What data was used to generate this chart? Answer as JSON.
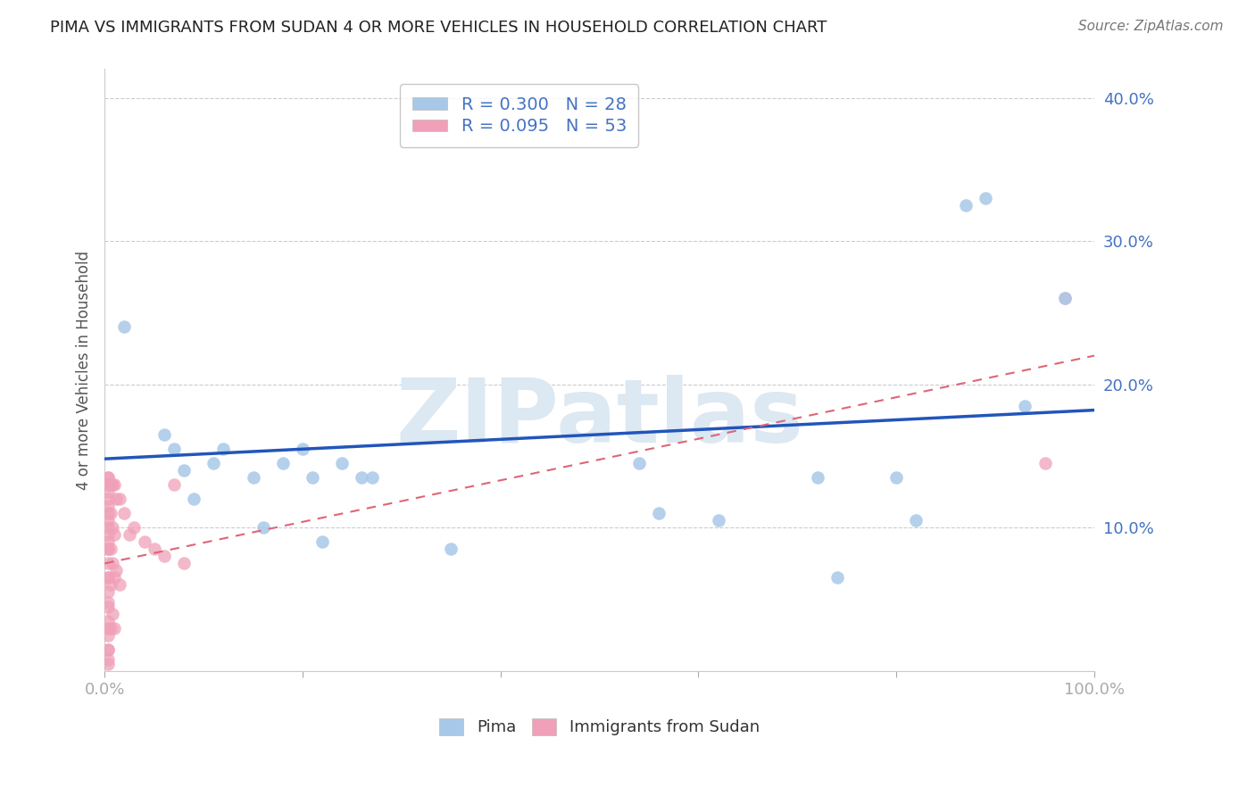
{
  "title": "PIMA VS IMMIGRANTS FROM SUDAN 4 OR MORE VEHICLES IN HOUSEHOLD CORRELATION CHART",
  "source": "Source: ZipAtlas.com",
  "ylabel": "4 or more Vehicles in Household",
  "xlabel": "",
  "xlim": [
    0.0,
    1.0
  ],
  "ylim": [
    0.0,
    0.42
  ],
  "xticks": [
    0.0,
    0.2,
    0.4,
    0.6,
    0.8,
    1.0
  ],
  "xticklabels": [
    "0.0%",
    "",
    "",
    "",
    "",
    "100.0%"
  ],
  "yticks": [
    0.0,
    0.1,
    0.2,
    0.3,
    0.4
  ],
  "yticklabels": [
    "",
    "10.0%",
    "20.0%",
    "30.0%",
    "40.0%"
  ],
  "pima_R": 0.3,
  "pima_N": 28,
  "sudan_R": 0.095,
  "sudan_N": 53,
  "pima_color": "#a8c8e8",
  "sudan_color": "#f0a0b8",
  "pima_line_color": "#2255bb",
  "sudan_line_color": "#dd6677",
  "background_color": "#ffffff",
  "watermark": "ZIPatlas",
  "pima_points_x": [
    0.02,
    0.06,
    0.07,
    0.08,
    0.09,
    0.11,
    0.12,
    0.15,
    0.16,
    0.18,
    0.2,
    0.21,
    0.22,
    0.24,
    0.26,
    0.27,
    0.35,
    0.54,
    0.56,
    0.62,
    0.72,
    0.74,
    0.8,
    0.82,
    0.87,
    0.89,
    0.93,
    0.97
  ],
  "pima_points_y": [
    0.24,
    0.165,
    0.155,
    0.14,
    0.12,
    0.145,
    0.155,
    0.135,
    0.1,
    0.145,
    0.155,
    0.135,
    0.09,
    0.145,
    0.135,
    0.135,
    0.085,
    0.145,
    0.11,
    0.105,
    0.135,
    0.065,
    0.135,
    0.105,
    0.325,
    0.33,
    0.185,
    0.26
  ],
  "sudan_points_x": [
    0.003,
    0.003,
    0.003,
    0.003,
    0.003,
    0.003,
    0.003,
    0.003,
    0.003,
    0.003,
    0.003,
    0.003,
    0.003,
    0.003,
    0.003,
    0.003,
    0.003,
    0.003,
    0.003,
    0.003,
    0.003,
    0.003,
    0.003,
    0.003,
    0.003,
    0.003,
    0.006,
    0.006,
    0.006,
    0.006,
    0.006,
    0.008,
    0.008,
    0.008,
    0.008,
    0.01,
    0.01,
    0.01,
    0.01,
    0.012,
    0.012,
    0.015,
    0.015,
    0.02,
    0.025,
    0.03,
    0.04,
    0.05,
    0.06,
    0.07,
    0.08,
    0.95,
    0.97
  ],
  "sudan_points_y": [
    0.135,
    0.125,
    0.115,
    0.105,
    0.095,
    0.085,
    0.075,
    0.065,
    0.055,
    0.045,
    0.035,
    0.025,
    0.015,
    0.008,
    0.135,
    0.12,
    0.1,
    0.085,
    0.065,
    0.048,
    0.03,
    0.015,
    0.005,
    0.13,
    0.11,
    0.09,
    0.13,
    0.11,
    0.085,
    0.06,
    0.03,
    0.13,
    0.1,
    0.075,
    0.04,
    0.13,
    0.095,
    0.065,
    0.03,
    0.12,
    0.07,
    0.12,
    0.06,
    0.11,
    0.095,
    0.1,
    0.09,
    0.085,
    0.08,
    0.13,
    0.075,
    0.145,
    0.26
  ],
  "pima_line_x0": 0.0,
  "pima_line_y0": 0.148,
  "pima_line_x1": 1.0,
  "pima_line_y1": 0.182,
  "sudan_line_x0": 0.0,
  "sudan_line_y0": 0.075,
  "sudan_line_x1": 1.0,
  "sudan_line_y1": 0.22
}
